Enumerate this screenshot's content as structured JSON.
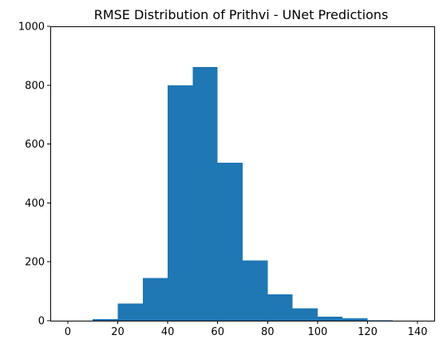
{
  "chart_data": {
    "type": "bar",
    "title": "RMSE Distribution of Prithvi - UNet Predictions",
    "xlabel": "",
    "ylabel": "",
    "bin_edges": [
      10,
      20,
      30,
      40,
      50,
      60,
      70,
      80,
      90,
      100,
      110,
      120,
      130
    ],
    "values": [
      5,
      58,
      145,
      800,
      862,
      537,
      205,
      90,
      42,
      14,
      8,
      2
    ],
    "xlim": [
      -7,
      147
    ],
    "ylim": [
      0,
      1000
    ],
    "x_ticks": [
      0,
      20,
      40,
      60,
      80,
      100,
      120,
      140
    ],
    "y_ticks": [
      0,
      200,
      400,
      600,
      800,
      1000
    ],
    "grid": false,
    "bar_color": "#1f77b4"
  }
}
